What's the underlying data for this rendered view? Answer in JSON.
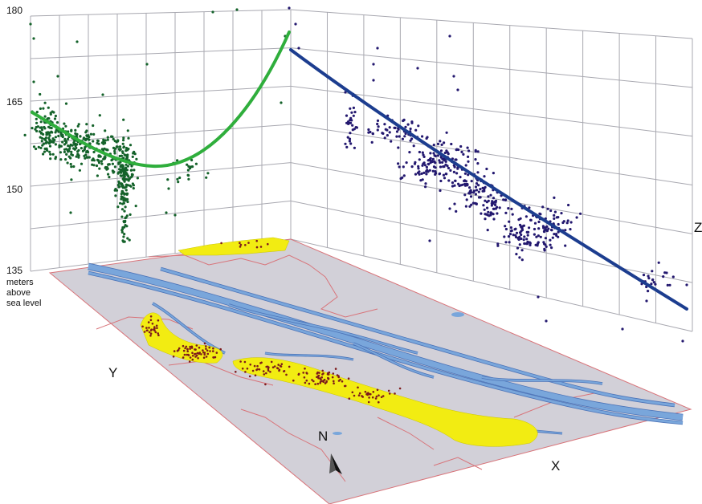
{
  "z_axis": {
    "ticks": [
      "180",
      "165",
      "150",
      "135"
    ],
    "unit_lines": [
      "meters",
      "above",
      "sea level"
    ],
    "label": "Z"
  },
  "axes": {
    "x_label": "X",
    "y_label": "Y"
  },
  "north_label": "N",
  "colors": {
    "grid": "#a8a8b0",
    "map_fill": "#d2d0d8",
    "boundary": "#d8747a",
    "river": "#79a6db",
    "river_edge": "#4d74b8",
    "deposit": "#f2ec12",
    "point_dark": "#7d1a1c",
    "green_points": "#14622a",
    "green_trend": "#2fae3c",
    "blue_points": "#23186f",
    "blue_trend": "#1c3d8f"
  }
}
